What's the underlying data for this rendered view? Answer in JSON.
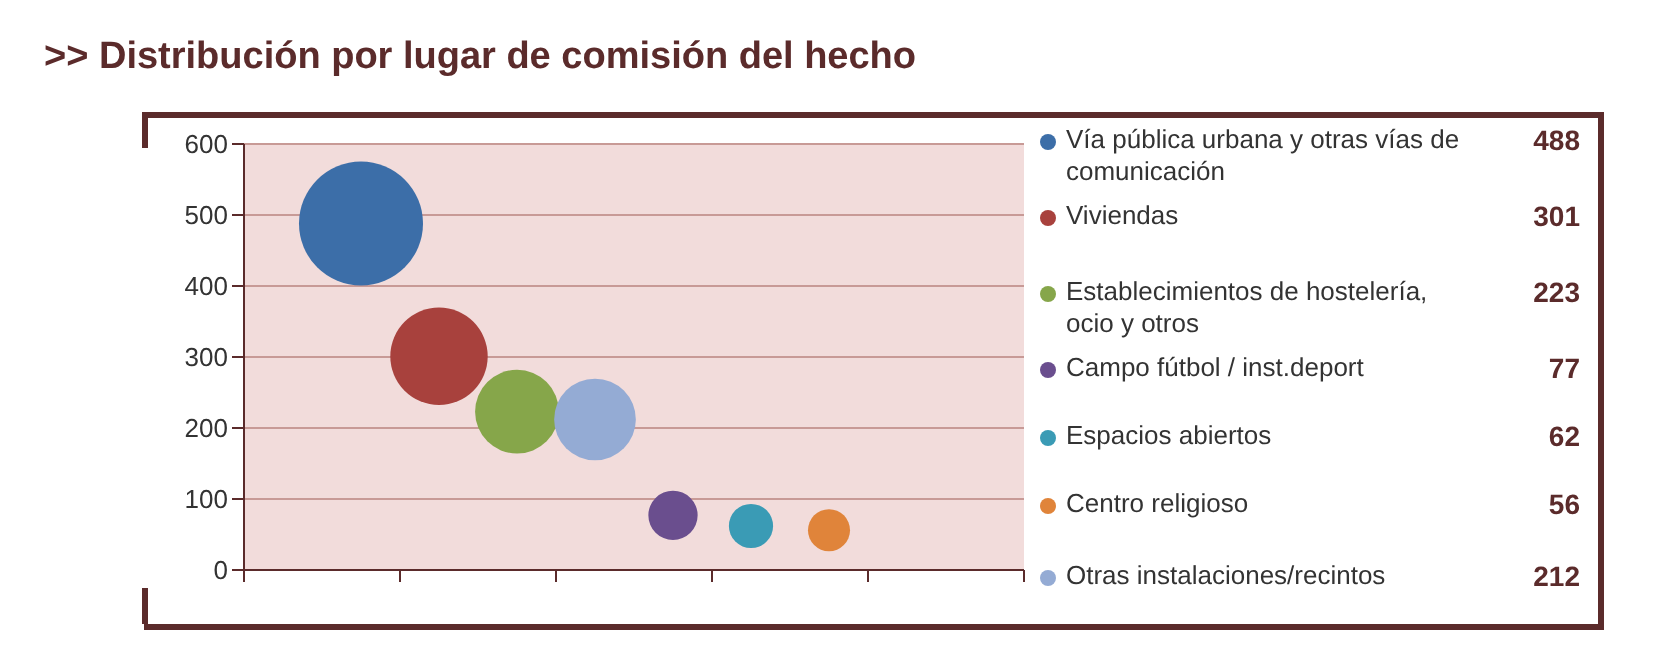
{
  "chart_data": {
    "type": "bubble",
    "title": ">> Distribución por lugar de comisión del hecho",
    "categories": [
      null,
      null,
      null,
      null,
      null,
      null,
      null,
      null,
      null,
      null
    ],
    "ylim": [
      0,
      600
    ],
    "yticks": [
      0,
      100,
      200,
      300,
      400,
      500,
      600
    ],
    "grid": "y",
    "legend": "right",
    "annotations": [
      "488",
      "301",
      "223",
      "77",
      "62",
      "56",
      "212"
    ],
    "series": [
      {
        "name": "Vía pública urbana y otras vías de comunicación",
        "color": "#3c6ea8",
        "values": [
          null,
          488,
          null,
          null,
          null,
          null,
          null,
          null,
          null,
          null
        ],
        "sizes": [
          null,
          1,
          null,
          null,
          null,
          null,
          null,
          null,
          null,
          null
        ]
      },
      {
        "name": "Viviendas",
        "color": "#a8413d",
        "values": [
          null,
          null,
          301,
          null,
          null,
          null,
          null,
          null,
          null,
          null
        ],
        "sizes": [
          null,
          null,
          0.617,
          null,
          null,
          null,
          null,
          null,
          null,
          null
        ]
      },
      {
        "name": "Establecimientos de hostelería, ocio y otros",
        "color": "#86a64a",
        "values": [
          null,
          null,
          null,
          223,
          null,
          null,
          null,
          null,
          null,
          null
        ],
        "sizes": [
          null,
          null,
          null,
          0.457,
          null,
          null,
          null,
          null,
          null,
          null
        ]
      },
      {
        "name": "Campo fútbol / inst.deport",
        "color": "#6a4e8e",
        "values": [
          null,
          null,
          null,
          null,
          null,
          77,
          null,
          null,
          null,
          null
        ],
        "sizes": [
          null,
          null,
          null,
          null,
          null,
          0.158,
          null,
          null,
          null,
          null
        ]
      },
      {
        "name": "Espacios abiertos",
        "color": "#3a9bb5",
        "values": [
          null,
          null,
          null,
          null,
          null,
          null,
          62,
          null,
          null,
          null
        ],
        "sizes": [
          null,
          null,
          null,
          null,
          null,
          null,
          0.127,
          null,
          null,
          null
        ]
      },
      {
        "name": "Centro religioso",
        "color": "#e0843a",
        "values": [
          null,
          null,
          null,
          null,
          null,
          null,
          null,
          56,
          null,
          null
        ],
        "sizes": [
          null,
          null,
          null,
          null,
          null,
          null,
          null,
          0.115,
          null,
          null
        ]
      },
      {
        "name": "Otras instalaciones/recintos",
        "color": "#94abd4",
        "values": [
          null,
          null,
          null,
          null,
          212,
          null,
          null,
          null,
          null,
          null
        ],
        "sizes": [
          null,
          null,
          null,
          null,
          0.434,
          null,
          null,
          null,
          null,
          null
        ]
      }
    ]
  }
}
